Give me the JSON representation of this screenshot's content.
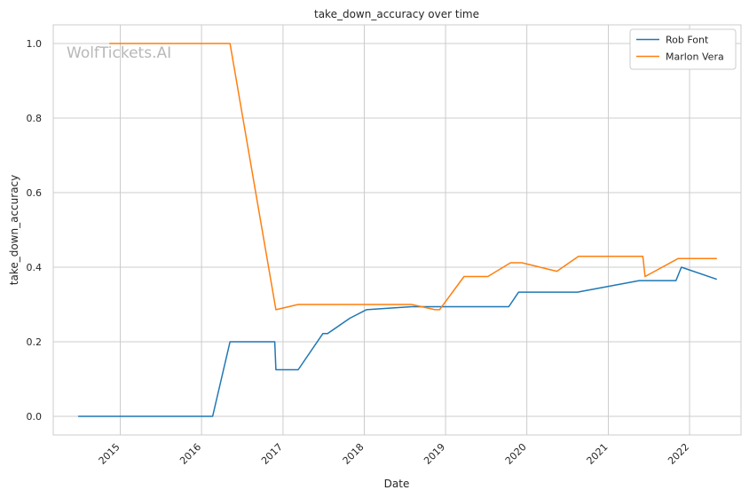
{
  "chart_data": {
    "type": "line",
    "title": "take_down_accuracy over time",
    "xlabel": "Date",
    "ylabel": "take_down_accuracy",
    "watermark": "WolfTickets.AI",
    "grid": true,
    "legend_position": "top-right",
    "xlim": [
      "2014-03-06",
      "2022-08-20"
    ],
    "ylim": [
      -0.05,
      1.05
    ],
    "x_ticks": [
      "2015",
      "2016",
      "2017",
      "2018",
      "2019",
      "2020",
      "2021",
      "2022"
    ],
    "y_ticks": [
      "0.0",
      "0.2",
      "0.4",
      "0.6",
      "0.8",
      "1.0"
    ],
    "series": [
      {
        "name": "Rob Font",
        "color": "#1f77b4",
        "points": [
          [
            "2014-06-28",
            0.0
          ],
          [
            "2016-02-20",
            0.0
          ],
          [
            "2016-05-08",
            0.2
          ],
          [
            "2016-11-25",
            0.2
          ],
          [
            "2016-11-30",
            0.125
          ],
          [
            "2017-03-10",
            0.125
          ],
          [
            "2017-06-29",
            0.222
          ],
          [
            "2017-07-20",
            0.222
          ],
          [
            "2017-10-28",
            0.263
          ],
          [
            "2018-01-10",
            0.286
          ],
          [
            "2018-08-01",
            0.294
          ],
          [
            "2019-10-12",
            0.294
          ],
          [
            "2019-11-25",
            0.333
          ],
          [
            "2020-08-15",
            0.333
          ],
          [
            "2021-05-20",
            0.364
          ],
          [
            "2021-11-01",
            0.364
          ],
          [
            "2021-11-25",
            0.4
          ],
          [
            "2022-05-01",
            0.368
          ]
        ]
      },
      {
        "name": "Marlon Vera",
        "color": "#ff7f0e",
        "points": [
          [
            "2014-11-15",
            1.0
          ],
          [
            "2016-05-08",
            1.0
          ],
          [
            "2016-11-30",
            0.286
          ],
          [
            "2017-03-10",
            0.3
          ],
          [
            "2018-08-01",
            0.3
          ],
          [
            "2018-11-15",
            0.286
          ],
          [
            "2018-12-05",
            0.286
          ],
          [
            "2019-03-25",
            0.375
          ],
          [
            "2019-07-10",
            0.375
          ],
          [
            "2019-10-20",
            0.412
          ],
          [
            "2019-12-10",
            0.412
          ],
          [
            "2020-05-15",
            0.389
          ],
          [
            "2020-08-20",
            0.429
          ],
          [
            "2021-06-05",
            0.429
          ],
          [
            "2021-06-15",
            0.375
          ],
          [
            "2021-11-10",
            0.423
          ],
          [
            "2022-05-01",
            0.423
          ]
        ]
      }
    ]
  }
}
